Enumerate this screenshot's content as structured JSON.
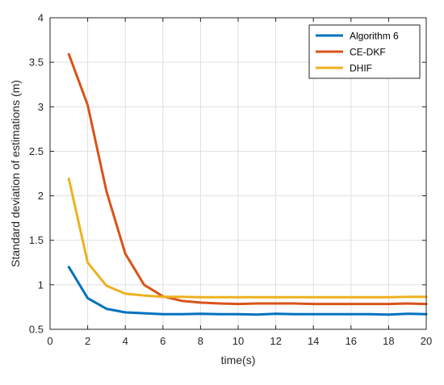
{
  "chart_data": {
    "type": "line",
    "title": "",
    "xlabel": "time(s)",
    "ylabel": "Standard deviation of estimations (m)",
    "xlim": [
      0,
      20
    ],
    "ylim": [
      0.5,
      4
    ],
    "xticks": [
      0,
      2,
      4,
      6,
      8,
      10,
      12,
      14,
      16,
      18,
      20
    ],
    "yticks": [
      0.5,
      1,
      1.5,
      2,
      2.5,
      3,
      3.5,
      4
    ],
    "grid": true,
    "legend_position": "top-right",
    "x": [
      1,
      2,
      3,
      4,
      5,
      6,
      7,
      8,
      9,
      10,
      11,
      12,
      13,
      14,
      15,
      16,
      17,
      18,
      19,
      20
    ],
    "series": [
      {
        "name": "Algorithm 6",
        "color": "#0072BD",
        "values": [
          1.2,
          0.85,
          0.73,
          0.69,
          0.68,
          0.67,
          0.67,
          0.675,
          0.67,
          0.67,
          0.665,
          0.675,
          0.67,
          0.67,
          0.67,
          0.67,
          0.67,
          0.665,
          0.675,
          0.67
        ]
      },
      {
        "name": "CE-DKF",
        "color": "#D95319",
        "values": [
          3.59,
          3.02,
          2.05,
          1.35,
          1.0,
          0.87,
          0.82,
          0.8,
          0.79,
          0.785,
          0.79,
          0.79,
          0.79,
          0.785,
          0.785,
          0.785,
          0.785,
          0.785,
          0.79,
          0.785
        ]
      },
      {
        "name": "DHIF",
        "color": "#EDB120",
        "values": [
          2.19,
          1.25,
          0.99,
          0.9,
          0.88,
          0.865,
          0.865,
          0.86,
          0.86,
          0.86,
          0.86,
          0.86,
          0.86,
          0.86,
          0.86,
          0.86,
          0.86,
          0.86,
          0.865,
          0.865
        ]
      }
    ]
  }
}
